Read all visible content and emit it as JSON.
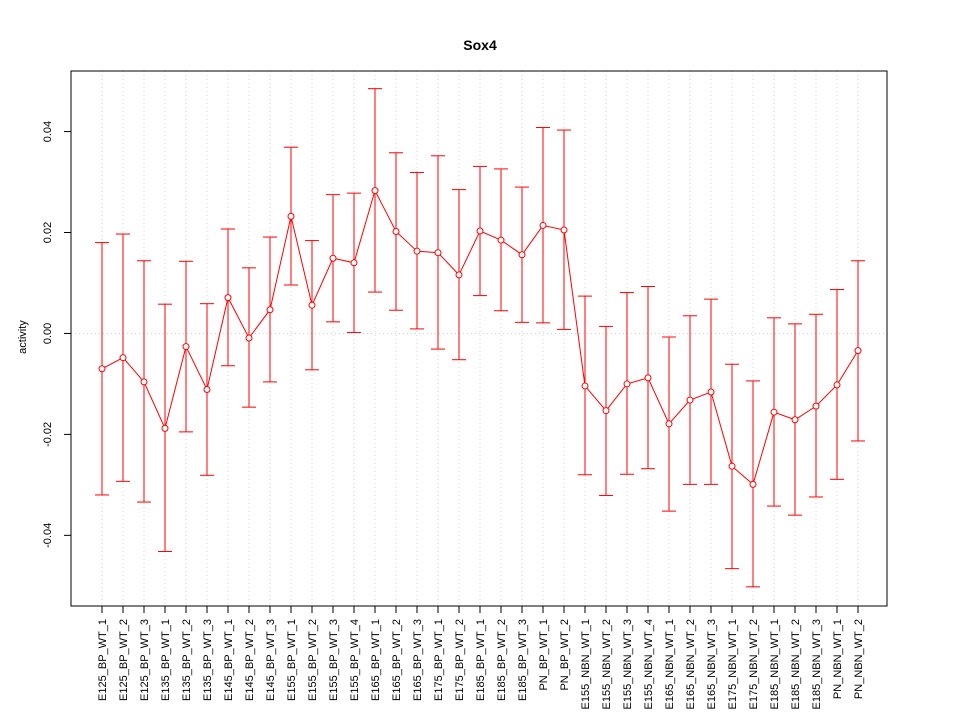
{
  "chart_data": {
    "type": "line",
    "title": "Sox4",
    "xlabel": "",
    "ylabel": "activity",
    "ylim": [
      -0.054,
      0.052
    ],
    "yticks": [
      -0.04,
      -0.02,
      0.0,
      0.02,
      0.04
    ],
    "ytick_labels": [
      "-0.04",
      "-0.02",
      "0.00",
      "0.02",
      "0.04"
    ],
    "grid": true,
    "color": "#ff0000",
    "grid_color": "#d3d3d3",
    "categories": [
      "E125_BP_WT_1",
      "E125_BP_WT_2",
      "E125_BP_WT_3",
      "E135_BP_WT_1",
      "E135_BP_WT_2",
      "E135_BP_WT_3",
      "E145_BP_WT_1",
      "E145_BP_WT_2",
      "E145_BP_WT_3",
      "E155_BP_WT_1",
      "E155_BP_WT_2",
      "E155_BP_WT_3",
      "E155_BP_WT_4",
      "E165_BP_WT_1",
      "E165_BP_WT_2",
      "E165_BP_WT_3",
      "E175_BP_WT_1",
      "E175_BP_WT_2",
      "E185_BP_WT_1",
      "E185_BP_WT_2",
      "E185_BP_WT_3",
      "PN_BP_WT_1",
      "PN_BP_WT_2",
      "E155_NBN_WT_1",
      "E155_NBN_WT_2",
      "E155_NBN_WT_3",
      "E155_NBN_WT_4",
      "E165_NBN_WT_1",
      "E165_NBN_WT_2",
      "E165_NBN_WT_3",
      "E175_NBN_WT_1",
      "E175_NBN_WT_2",
      "E185_NBN_WT_1",
      "E185_NBN_WT_2",
      "E185_NBN_WT_3",
      "PN_NBN_WT_1",
      "PN_NBN_WT_2"
    ],
    "values": [
      -0.007,
      -0.0048,
      -0.0096,
      -0.0188,
      -0.0026,
      -0.0111,
      0.0071,
      -0.0009,
      0.0047,
      0.0232,
      0.0056,
      0.0149,
      0.014,
      0.0283,
      0.0202,
      0.0163,
      0.016,
      0.0116,
      0.0203,
      0.0185,
      0.0156,
      0.0214,
      0.0205,
      -0.0104,
      -0.0153,
      -0.01,
      -0.0088,
      -0.0179,
      -0.0132,
      -0.0116,
      -0.0263,
      -0.0299,
      -0.0156,
      -0.0171,
      -0.0144,
      -0.0102,
      -0.0034
    ],
    "lower": [
      -0.032,
      -0.0293,
      -0.0334,
      -0.0432,
      -0.0195,
      -0.0281,
      -0.0064,
      -0.0146,
      -0.0096,
      0.0096,
      -0.0072,
      0.0023,
      0.0002,
      0.0082,
      0.0046,
      0.0009,
      -0.0031,
      -0.0052,
      0.0075,
      0.0045,
      0.0022,
      0.0021,
      0.0008,
      -0.028,
      -0.0321,
      -0.0279,
      -0.0268,
      -0.0352,
      -0.0299,
      -0.0299,
      -0.0466,
      -0.0502,
      -0.0342,
      -0.036,
      -0.0324,
      -0.0289,
      -0.0213
    ],
    "upper": [
      0.018,
      0.0197,
      0.0144,
      0.0058,
      0.0143,
      0.0059,
      0.0207,
      0.013,
      0.0191,
      0.0369,
      0.0184,
      0.0275,
      0.0278,
      0.0485,
      0.0358,
      0.0319,
      0.0352,
      0.0285,
      0.0331,
      0.0326,
      0.029,
      0.0408,
      0.0403,
      0.0074,
      0.0014,
      0.0081,
      0.0093,
      -0.0007,
      0.0035,
      0.0068,
      -0.0061,
      -0.0094,
      0.0031,
      0.0019,
      0.0038,
      0.0087,
      0.0144
    ]
  }
}
